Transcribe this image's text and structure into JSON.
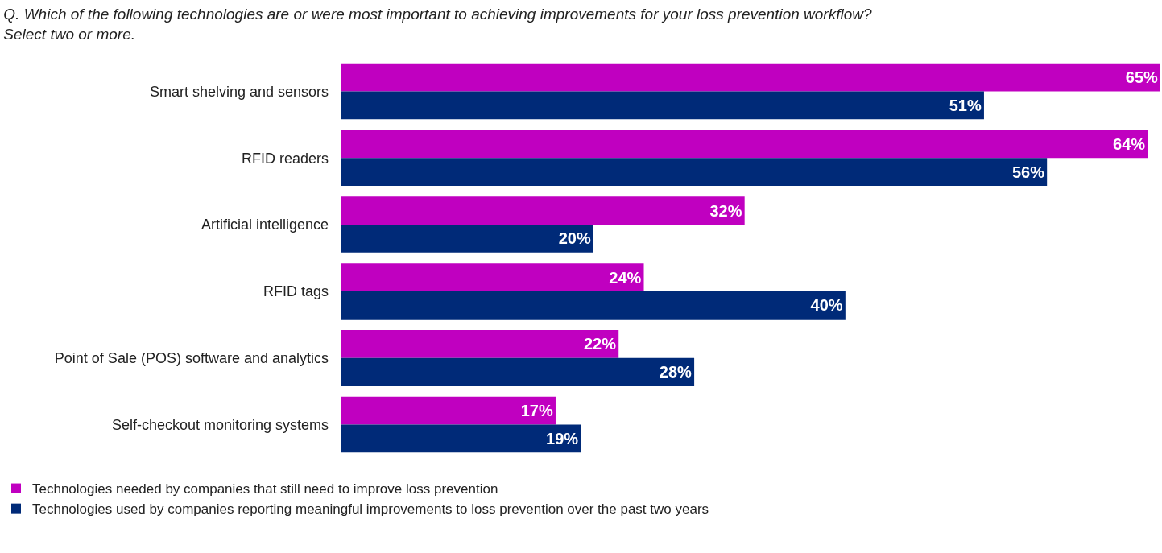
{
  "chart_data": {
    "type": "bar",
    "orientation": "horizontal",
    "title": "Q. Which of the following technologies are or were most important to achieving improvements for your loss prevention workflow? Select two or more.",
    "categories": [
      "Smart shelving and sensors",
      "RFID readers",
      "Artificial intelligence",
      "RFID tags",
      "Point of Sale (POS) software and analytics",
      "Self-checkout monitoring systems"
    ],
    "series": [
      {
        "name": "Technologies needed by companies that still need to improve loss prevention",
        "color": "#c000c0",
        "values": [
          65,
          64,
          32,
          24,
          22,
          17
        ],
        "value_labels": [
          "65%",
          "64%",
          "32%",
          "24%",
          "22%",
          "17%"
        ]
      },
      {
        "name": "Technologies used by companies reporting meaningful improvements to loss prevention over the past two years",
        "color": "#002a78",
        "values": [
          51,
          56,
          20,
          40,
          28,
          19
        ],
        "value_labels": [
          "51%",
          "56%",
          "20%",
          "40%",
          "28%",
          "19%"
        ]
      }
    ],
    "tick_labels": "y",
    "legend": "bottom left"
  }
}
